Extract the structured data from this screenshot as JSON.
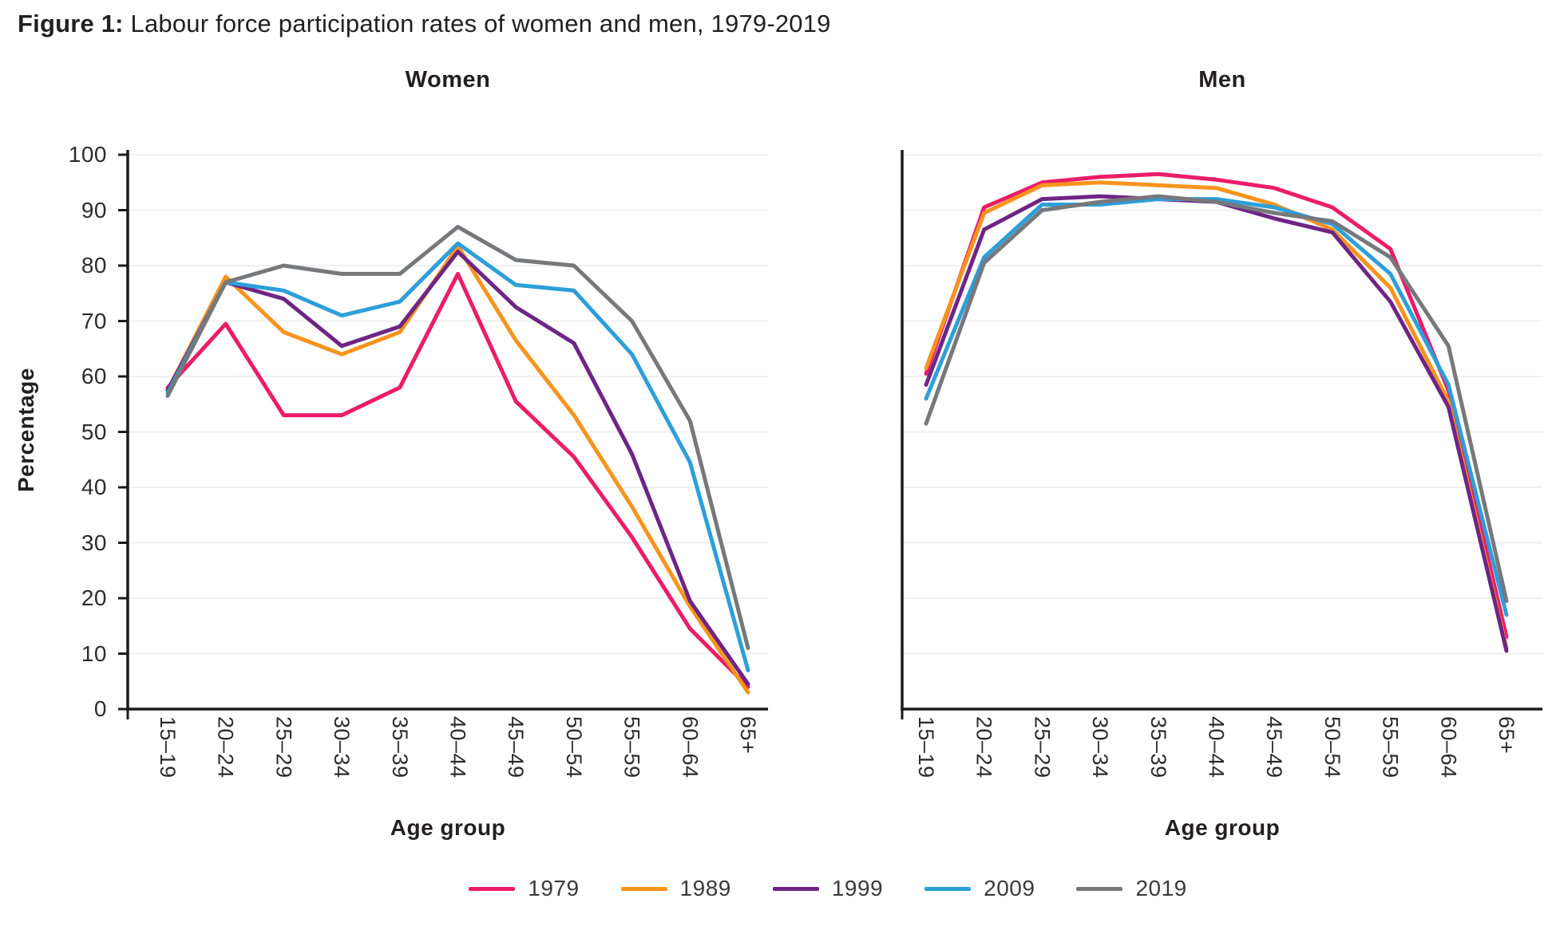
{
  "figure": {
    "label": "Figure 1:",
    "title_rest": " Labour force participation rates of women and men, 1979-2019"
  },
  "axes": {
    "y_label": "Percentage",
    "x_label": "Age group",
    "y_ticks": [
      0,
      10,
      20,
      30,
      40,
      50,
      60,
      70,
      80,
      90,
      100
    ],
    "y_min": 0,
    "y_max": 100,
    "grid": "horizontal-light"
  },
  "legend": [
    {
      "label": "1979",
      "color": "#EC1C68"
    },
    {
      "label": "1989",
      "color": "#F7941D"
    },
    {
      "label": "1999",
      "color": "#6E2585"
    },
    {
      "label": "2009",
      "color": "#2D9FD8"
    },
    {
      "label": "2019",
      "color": "#77787B"
    }
  ],
  "chart_data": [
    {
      "type": "line",
      "title": "Women",
      "xlabel": "Age group",
      "ylabel": "Percentage",
      "ylim": [
        0,
        100
      ],
      "categories": [
        "15–19",
        "20–24",
        "25–29",
        "30–34",
        "35–39",
        "40–44",
        "45–49",
        "50–54",
        "55–59",
        "60–64",
        "65+"
      ],
      "series": [
        {
          "name": "1979",
          "color": "#EC1C68",
          "values": [
            58,
            69.5,
            53,
            53,
            58,
            78.5,
            55.5,
            45.5,
            31,
            14.5,
            4
          ]
        },
        {
          "name": "1989",
          "color": "#F7941D",
          "values": [
            57.5,
            78,
            68,
            64,
            68,
            83.5,
            66.5,
            53,
            36.5,
            18.5,
            3
          ]
        },
        {
          "name": "1999",
          "color": "#6E2585",
          "values": [
            57.5,
            77,
            74,
            65.5,
            69,
            82.5,
            72.5,
            66,
            46,
            19.5,
            4.5
          ]
        },
        {
          "name": "2009",
          "color": "#2D9FD8",
          "values": [
            57,
            77,
            75.5,
            71,
            73.5,
            84,
            76.5,
            75.5,
            64,
            44.5,
            7
          ]
        },
        {
          "name": "2019",
          "color": "#77787B",
          "values": [
            56.5,
            77,
            80,
            78.5,
            78.5,
            87,
            81,
            80,
            70,
            52,
            11
          ]
        }
      ]
    },
    {
      "type": "line",
      "title": "Men",
      "xlabel": "Age group",
      "ylabel": "Percentage",
      "ylim": [
        0,
        100
      ],
      "categories": [
        "15–19",
        "20–24",
        "25–29",
        "30–34",
        "35–39",
        "40–44",
        "45–49",
        "50–54",
        "55–59",
        "60–64",
        "65+"
      ],
      "series": [
        {
          "name": "1979",
          "color": "#EC1C68",
          "values": [
            60.5,
            90.5,
            95,
            96,
            96.5,
            95.5,
            94,
            90.5,
            83,
            57.5,
            13
          ]
        },
        {
          "name": "1989",
          "color": "#F7941D",
          "values": [
            61.5,
            89.5,
            94.5,
            95,
            94.5,
            94,
            91,
            86.5,
            76,
            55.5,
            11
          ]
        },
        {
          "name": "1999",
          "color": "#6E2585",
          "values": [
            58.5,
            86.5,
            92,
            92.5,
            92,
            91.5,
            88.5,
            86,
            73.5,
            54.5,
            10.5
          ]
        },
        {
          "name": "2009",
          "color": "#2D9FD8",
          "values": [
            56,
            81.5,
            91,
            91,
            92,
            92,
            90.5,
            87.5,
            78.5,
            58.5,
            17
          ]
        },
        {
          "name": "2019",
          "color": "#77787B",
          "values": [
            51.5,
            80.5,
            90,
            91.5,
            92.5,
            91.5,
            89.5,
            88,
            81.5,
            65.5,
            19.5
          ]
        }
      ]
    }
  ]
}
